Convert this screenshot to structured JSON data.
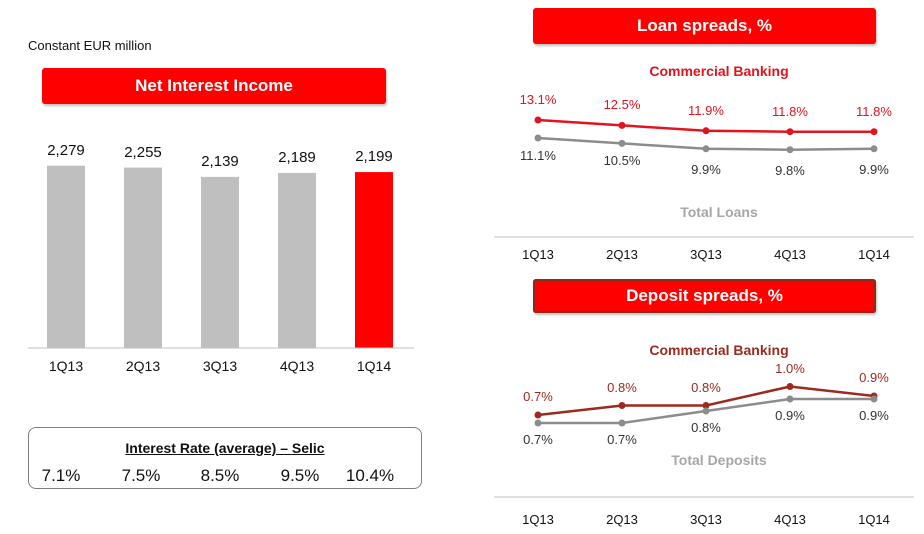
{
  "header": {
    "unit_label": "Constant EUR million"
  },
  "nii": {
    "title": "Net Interest Income"
  },
  "selic": {
    "title": "Interest Rate (average) – Selic",
    "values": [
      "7.1%",
      "7.5%",
      "8.5%",
      "9.5%",
      "10.4%"
    ]
  },
  "loan": {
    "title": "Loan spreads, %",
    "series1_label": "Commercial Banking",
    "series2_label": "Total Loans"
  },
  "deposit": {
    "title": "Deposit spreads, %",
    "series1_label": "Commercial Banking",
    "series2_label": "Total Deposits"
  },
  "colors": {
    "accent_red": "#ff0000",
    "bar_gray": "#bfbfbf",
    "line_red": "#e0141e",
    "line_darkred": "#9b2a1f",
    "line_gray": "#8c8c8c"
  },
  "chart_data": [
    {
      "type": "bar",
      "title": "Net Interest Income",
      "categories": [
        "1Q13",
        "2Q13",
        "3Q13",
        "4Q13",
        "1Q14"
      ],
      "values": [
        2279,
        2255,
        2139,
        2189,
        2199
      ],
      "value_labels": [
        "2,279",
        "2,255",
        "2,139",
        "2,189",
        "2,199"
      ],
      "highlight_index": 4,
      "ylim": [
        0,
        2500
      ]
    },
    {
      "type": "line",
      "title": "Loan spreads, %",
      "categories": [
        "1Q13",
        "2Q13",
        "3Q13",
        "4Q13",
        "1Q14"
      ],
      "series": [
        {
          "name": "Commercial Banking",
          "values": [
            13.1,
            12.5,
            11.9,
            11.8,
            11.8
          ],
          "labels": [
            "13.1%",
            "12.5%",
            "11.9%",
            "11.8%",
            "11.8%"
          ]
        },
        {
          "name": "Total Loans",
          "values": [
            11.1,
            10.5,
            9.9,
            9.8,
            9.9
          ],
          "labels": [
            "11.1%",
            "10.5%",
            "9.9%",
            "9.8%",
            "9.9%"
          ]
        }
      ]
    },
    {
      "type": "line",
      "title": "Deposit spreads, %",
      "categories": [
        "1Q13",
        "2Q13",
        "3Q13",
        "4Q13",
        "1Q14"
      ],
      "series": [
        {
          "name": "Commercial Banking",
          "values": [
            0.7,
            0.8,
            0.8,
            1.0,
            0.9
          ],
          "labels": [
            "0.7%",
            "0.8%",
            "0.8%",
            "1.0%",
            "0.9%"
          ]
        },
        {
          "name": "Total Deposits",
          "values": [
            0.7,
            0.7,
            0.8,
            0.9,
            0.9
          ],
          "labels": [
            "0.7%",
            "0.7%",
            "0.8%",
            "0.9%",
            "0.9%"
          ]
        }
      ]
    }
  ]
}
